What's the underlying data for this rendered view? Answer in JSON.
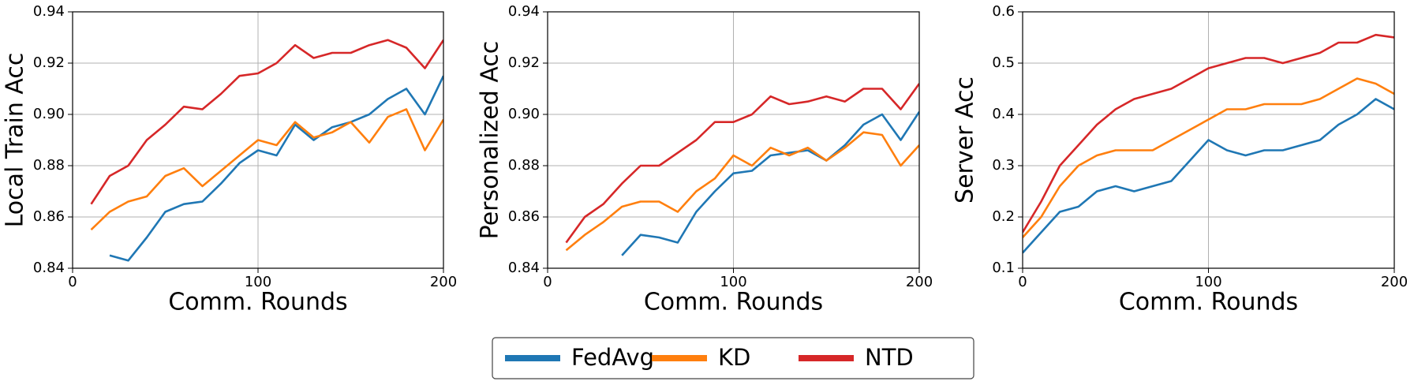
{
  "chart_data": [
    {
      "type": "line",
      "ylabel": "Local Train Acc",
      "xlabel": "Comm. Rounds",
      "grid": true,
      "x": [
        0,
        10,
        20,
        30,
        40,
        50,
        60,
        70,
        80,
        90,
        100,
        110,
        120,
        130,
        140,
        150,
        160,
        170,
        180,
        190,
        200
      ],
      "xlim": [
        0,
        200
      ],
      "xticks": [
        0,
        100,
        200
      ],
      "ylim": [
        0.84,
        0.94
      ],
      "yticks": [
        0.84,
        0.86,
        0.88,
        {
          "value": 0.9,
          "label": "0.90"
        },
        0.92,
        0.94
      ],
      "series": [
        {
          "name": "FedAvg",
          "color": "#1f77b4",
          "values": [
            null,
            null,
            0.845,
            0.843,
            0.852,
            0.862,
            0.865,
            0.866,
            0.873,
            0.881,
            0.886,
            0.884,
            0.896,
            0.89,
            0.895,
            0.897,
            0.9,
            0.906,
            0.91,
            0.9,
            0.915
          ]
        },
        {
          "name": "KD",
          "color": "#ff7f0e",
          "values": [
            null,
            0.855,
            0.862,
            0.866,
            0.868,
            0.876,
            0.879,
            0.872,
            0.878,
            0.884,
            0.89,
            0.888,
            0.897,
            0.891,
            0.893,
            0.897,
            0.889,
            0.899,
            0.902,
            0.886,
            0.898
          ]
        },
        {
          "name": "NTD",
          "color": "#d62728",
          "values": [
            null,
            0.865,
            0.876,
            0.88,
            0.89,
            0.896,
            0.903,
            0.902,
            0.908,
            0.915,
            0.916,
            0.92,
            0.927,
            0.922,
            0.924,
            0.924,
            0.927,
            0.929,
            0.926,
            0.918,
            0.929
          ]
        }
      ]
    },
    {
      "type": "line",
      "ylabel": "Personalized Acc",
      "xlabel": "Comm. Rounds",
      "grid": true,
      "x": [
        0,
        10,
        20,
        30,
        40,
        50,
        60,
        70,
        80,
        90,
        100,
        110,
        120,
        130,
        140,
        150,
        160,
        170,
        180,
        190,
        200
      ],
      "xlim": [
        0,
        200
      ],
      "xticks": [
        0,
        100,
        200
      ],
      "ylim": [
        0.84,
        0.94
      ],
      "yticks": [
        0.84,
        0.86,
        0.88,
        {
          "value": 0.9,
          "label": "0.90"
        },
        0.92,
        0.94
      ],
      "series": [
        {
          "color": "#1f77b4",
          "values": [
            null,
            null,
            null,
            null,
            0.845,
            0.853,
            0.852,
            0.85,
            0.862,
            0.87,
            0.877,
            0.878,
            0.884,
            0.885,
            0.886,
            0.882,
            0.888,
            0.896,
            0.9,
            0.89,
            0.901
          ]
        },
        {
          "color": "#ff7f0e",
          "values": [
            null,
            0.847,
            0.853,
            0.858,
            0.864,
            0.866,
            0.866,
            0.862,
            0.87,
            0.875,
            0.884,
            0.88,
            0.887,
            0.884,
            0.887,
            0.882,
            0.887,
            0.893,
            0.892,
            0.88,
            0.888
          ]
        },
        {
          "color": "#d62728",
          "values": [
            null,
            0.85,
            0.86,
            0.865,
            0.873,
            0.88,
            0.88,
            0.885,
            0.89,
            0.897,
            0.897,
            0.9,
            0.907,
            0.904,
            0.905,
            0.907,
            0.905,
            0.91,
            0.91,
            0.902,
            0.912
          ]
        }
      ]
    },
    {
      "type": "line",
      "ylabel": "Server Acc",
      "xlabel": "Comm. Rounds",
      "grid": true,
      "x": [
        0,
        10,
        20,
        30,
        40,
        50,
        60,
        70,
        80,
        90,
        100,
        110,
        120,
        130,
        140,
        150,
        160,
        170,
        180,
        190,
        200
      ],
      "xlim": [
        0,
        200
      ],
      "xticks": [
        0,
        100,
        200
      ],
      "ylim": [
        0.1,
        0.6
      ],
      "yticks": [
        0.1,
        0.2,
        0.3,
        0.4,
        0.5,
        0.6
      ],
      "series": [
        {
          "color": "#1f77b4",
          "values": [
            0.13,
            0.17,
            0.21,
            0.22,
            0.25,
            0.26,
            0.25,
            0.26,
            0.27,
            0.31,
            0.35,
            0.33,
            0.32,
            0.33,
            0.33,
            0.34,
            0.35,
            0.38,
            0.4,
            0.43,
            0.41
          ]
        },
        {
          "color": "#ff7f0e",
          "values": [
            0.16,
            0.2,
            0.26,
            0.3,
            0.32,
            0.33,
            0.33,
            0.33,
            0.35,
            0.37,
            0.39,
            0.41,
            0.41,
            0.42,
            0.42,
            0.42,
            0.43,
            0.45,
            0.47,
            0.46,
            0.44
          ]
        },
        {
          "color": "#d62728",
          "values": [
            0.17,
            0.23,
            0.3,
            0.34,
            0.38,
            0.41,
            0.43,
            0.44,
            0.45,
            0.47,
            0.49,
            0.5,
            0.51,
            0.51,
            0.5,
            0.51,
            0.52,
            0.54,
            0.54,
            0.555,
            0.55
          ]
        }
      ]
    }
  ]
}
